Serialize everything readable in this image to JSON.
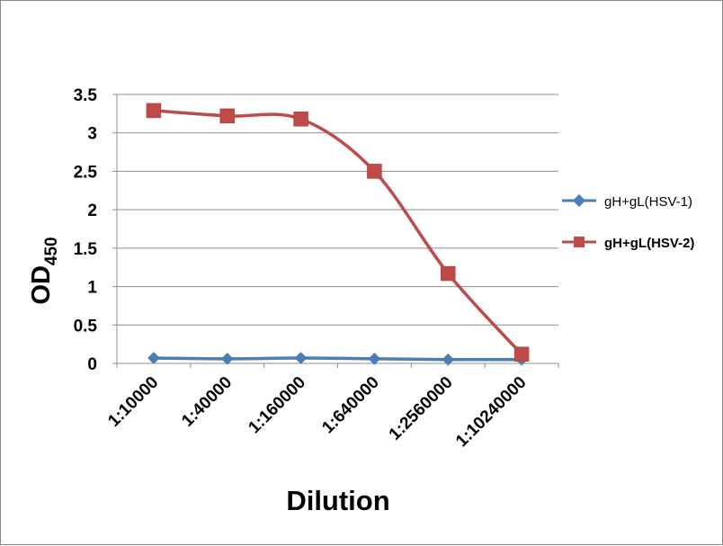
{
  "chart_data": {
    "type": "line",
    "categories": [
      "1:10000",
      "1:40000",
      "1:160000",
      "1:640000",
      "1:2560000",
      "1:10240000"
    ],
    "series": [
      {
        "name": "gH+gL(HSV-1)",
        "color": "#4a7ebb",
        "marker": "diamond",
        "values": [
          0.07,
          0.06,
          0.07,
          0.06,
          0.05,
          0.05
        ]
      },
      {
        "name": "gH+gL(HSV-2)",
        "color": "#be4b48",
        "marker": "square",
        "values": [
          3.29,
          3.22,
          3.18,
          2.5,
          1.17,
          0.12
        ]
      }
    ],
    "xlabel": "Dilution",
    "ylabel_main": "OD",
    "ylabel_sub": "450",
    "ylim": [
      0,
      3.5
    ],
    "yticks": [
      "0",
      "0.5",
      "1",
      "1.5",
      "2",
      "2.5",
      "3",
      "3.5"
    ],
    "grid": "horizontal",
    "legend_position": "right"
  }
}
